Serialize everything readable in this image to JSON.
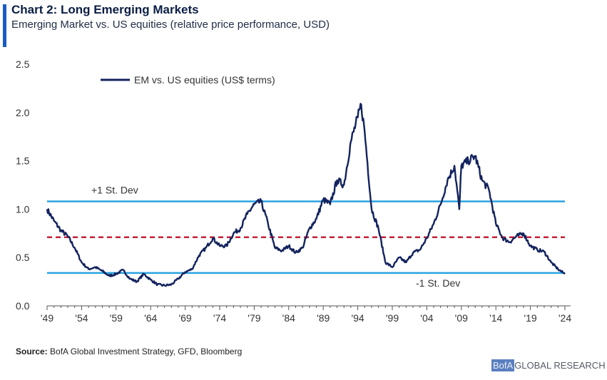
{
  "header": {
    "title": "Chart 2: Long Emerging Markets",
    "subtitle": "Emerging Market vs. US equities (relative price performance, USD)"
  },
  "footer": {
    "source_label": "Source:",
    "source_text": "BofA Global Investment Strategy, GFD, Bloomberg",
    "brand_logo": "BofA",
    "brand_text": "GLOBAL RESEARCH"
  },
  "colors": {
    "series": "#13235e",
    "band": "#2aa3e0",
    "mean": "#c4223a",
    "accent": "#1a5bc4"
  },
  "chart_data": {
    "type": "line",
    "title": "Chart 2: Long Emerging Markets",
    "subtitle": "Emerging Market vs. US equities (relative price performance, USD)",
    "xlabel": "",
    "ylabel": "",
    "xlim": [
      1949,
      2024
    ],
    "ylim": [
      0,
      2.5
    ],
    "yticks": [
      0.0,
      0.5,
      1.0,
      1.5,
      2.0,
      2.5
    ],
    "ytick_labels": [
      "0.0",
      "0.5",
      "1.0",
      "1.5",
      "2.0",
      "2.5"
    ],
    "xticks": [
      1949,
      1954,
      1959,
      1964,
      1969,
      1974,
      1979,
      1984,
      1989,
      1994,
      1999,
      2004,
      2009,
      2014,
      2019,
      2024
    ],
    "xtick_labels": [
      "'49",
      "'54",
      "'59",
      "'64",
      "'69",
      "'74",
      "'79",
      "'84",
      "'89",
      "'94",
      "'99",
      "'04",
      "'09",
      "'14",
      "'19",
      "'24"
    ],
    "legend": {
      "position": "top-left",
      "entries": [
        "EM vs. US equities (US$ terms)"
      ]
    },
    "series": [
      {
        "name": "EM vs. US equities (US$ terms)",
        "x": [
          1949,
          1950,
          1951,
          1952,
          1953,
          1954,
          1955,
          1956,
          1957,
          1958,
          1959,
          1960,
          1961,
          1962,
          1963,
          1964,
          1965,
          1966,
          1967,
          1968,
          1969,
          1970,
          1971,
          1972,
          1973,
          1974,
          1975,
          1976,
          1977,
          1978,
          1979,
          1980,
          1981,
          1982,
          1983,
          1984,
          1985,
          1986,
          1987,
          1988,
          1989,
          1990,
          1991,
          1992,
          1993,
          1994,
          1994.5,
          1995,
          1996,
          1997,
          1998,
          1999,
          2000,
          2001,
          2002,
          2003,
          2004,
          2005,
          2006,
          2007,
          2008,
          2008.7,
          2009,
          2010,
          2011,
          2012,
          2013,
          2014,
          2015,
          2016,
          2017,
          2018,
          2019,
          2020,
          2021,
          2022,
          2023,
          2024
        ],
        "values": [
          1.0,
          0.88,
          0.78,
          0.72,
          0.6,
          0.45,
          0.38,
          0.4,
          0.36,
          0.31,
          0.33,
          0.37,
          0.28,
          0.25,
          0.33,
          0.27,
          0.22,
          0.21,
          0.22,
          0.28,
          0.35,
          0.38,
          0.52,
          0.6,
          0.7,
          0.62,
          0.62,
          0.75,
          0.8,
          0.95,
          1.05,
          1.08,
          0.85,
          0.6,
          0.57,
          0.62,
          0.55,
          0.6,
          0.8,
          0.9,
          1.1,
          1.05,
          1.3,
          1.25,
          1.7,
          1.95,
          2.08,
          1.8,
          1.0,
          0.8,
          0.45,
          0.4,
          0.5,
          0.45,
          0.55,
          0.58,
          0.7,
          0.85,
          1.05,
          1.3,
          1.45,
          1.0,
          1.45,
          1.5,
          1.55,
          1.3,
          1.2,
          0.85,
          0.7,
          0.66,
          0.72,
          0.75,
          0.62,
          0.58,
          0.56,
          0.45,
          0.38,
          0.33
        ]
      }
    ],
    "reference_lines": [
      {
        "name": "+1 St. Dev",
        "label": "+1 St. Dev",
        "y": 1.08,
        "style": "solid",
        "label_position": "left"
      },
      {
        "name": "mean",
        "label": "",
        "y": 0.71,
        "style": "dashed"
      },
      {
        "name": "-1 St. Dev",
        "label": "-1 St. Dev",
        "y": 0.34,
        "style": "solid",
        "label_position": "right"
      }
    ],
    "grid": false
  }
}
